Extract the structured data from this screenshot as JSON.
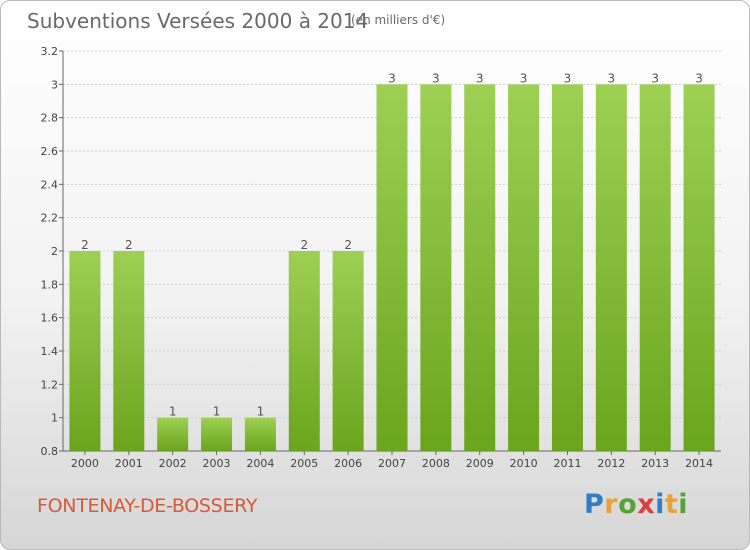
{
  "header": {
    "title": "Subventions Versées 2000 à 2014",
    "subtitle": "(en milliers d'€)"
  },
  "footer": {
    "commune": "FONTENAY-DE-BOSSERY",
    "brand": {
      "letters": [
        "P",
        "r",
        "o",
        "x",
        "i",
        "t",
        "i"
      ],
      "colors": [
        "#2f7fc6",
        "#e8a23a",
        "#56a13a",
        "#d9403a",
        "#2f7fc6",
        "#e8a23a",
        "#56a13a"
      ]
    }
  },
  "colors": {
    "bar_light": "#9dd054",
    "bar_dark": "#6aa51d",
    "grid": "#cfcfcf",
    "axis": "#666666"
  },
  "chart_data": {
    "type": "bar",
    "categories": [
      "2000",
      "2001",
      "2002",
      "2003",
      "2004",
      "2005",
      "2006",
      "2007",
      "2008",
      "2009",
      "2010",
      "2011",
      "2012",
      "2013",
      "2014"
    ],
    "values": [
      2,
      2,
      1,
      1,
      1,
      2,
      2,
      3,
      3,
      3,
      3,
      3,
      3,
      3,
      3
    ],
    "value_labels": [
      "2",
      "2",
      "1",
      "1",
      "1",
      "2",
      "2",
      "3",
      "3",
      "3",
      "3",
      "3",
      "3",
      "3",
      "3"
    ],
    "y_ticks": [
      0.8,
      1,
      1.2,
      1.4,
      1.6,
      1.8,
      2,
      2.2,
      2.4,
      2.6,
      2.8,
      3,
      3.2
    ],
    "y_tick_labels": [
      "0.8",
      "1",
      "1.2",
      "1.4",
      "1.6",
      "1.8",
      "2",
      "2.2",
      "2.4",
      "2.6",
      "2.8",
      "3",
      "3.2"
    ],
    "ylim": [
      0.8,
      3.2
    ],
    "grid": true,
    "title": "Subventions Versées 2000 à 2014",
    "xlabel": "",
    "ylabel": ""
  }
}
